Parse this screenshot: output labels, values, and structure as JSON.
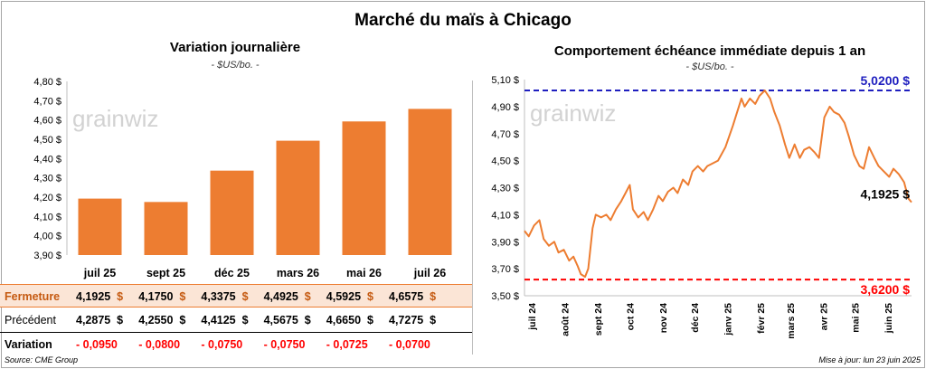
{
  "title": "Marché du maïs à Chicago",
  "left_chart": {
    "title": "Variation journalière",
    "unit": "- $US/bo. -",
    "watermark": "grainwiz"
  },
  "right_chart": {
    "title": "Comportement échéance immédiate depuis 1 an",
    "unit": "- $US/bo. -",
    "watermark": "grainwiz"
  },
  "table": {
    "row_labels": {
      "close": "Fermeture",
      "previous": "Précédent",
      "variation": "Variation"
    },
    "close": [
      "4,1925",
      "4,1750",
      "4,3375",
      "4,4925",
      "4,5925",
      "4,6575"
    ],
    "previous": [
      "4,2875",
      "4,2550",
      "4,4125",
      "4,5675",
      "4,6650",
      "4,7275"
    ],
    "variation": [
      "- 0,0950",
      "- 0,0800",
      "- 0,0750",
      "- 0,0750",
      "- 0,0725",
      "- 0,0700"
    ],
    "currency": "$"
  },
  "footer": {
    "source": "Source: CME Group",
    "update": "Mise à jour: lun 23 juin 2025"
  },
  "colors": {
    "bar": "#ed7d31",
    "line": "#ed7d31",
    "high_line": "#1f1fbf",
    "low_line": "#ff0000",
    "table_highlight": "#fbe5d6"
  },
  "chart_data": [
    {
      "type": "bar",
      "title": "Variation journalière",
      "ylabel": "- $US/bo. -",
      "categories": [
        "juil 25",
        "sept 25",
        "déc 25",
        "mars 26",
        "mai 26",
        "juil 26"
      ],
      "values": [
        4.1925,
        4.175,
        4.3375,
        4.4925,
        4.5925,
        4.6575
      ],
      "ylim": [
        3.9,
        4.8
      ],
      "yticks": [
        "3,90 $",
        "4,00 $",
        "4,10 $",
        "4,20 $",
        "4,30 $",
        "4,40 $",
        "4,50 $",
        "4,60 $",
        "4,70 $",
        "4,80 $"
      ],
      "grid": false
    },
    {
      "type": "line",
      "title": "Comportement échéance immédiate depuis 1 an",
      "ylabel": "- $US/bo. -",
      "ylim": [
        3.5,
        5.1
      ],
      "yticks": [
        "3,50 $",
        "3,70 $",
        "3,90 $",
        "4,10 $",
        "4,30 $",
        "4,50 $",
        "4,70 $",
        "4,90 $",
        "5,10 $"
      ],
      "xticks": [
        "juil 24",
        "août 24",
        "sept 24",
        "oct 24",
        "nov 24",
        "déc 24",
        "janv 25",
        "févr 25",
        "mars 25",
        "avr 25",
        "mai 25",
        "juin 25"
      ],
      "x": [
        "2024-06-24",
        "2024-06-28",
        "2024-07-03",
        "2024-07-08",
        "2024-07-12",
        "2024-07-17",
        "2024-07-22",
        "2024-07-26",
        "2024-07-31",
        "2024-08-05",
        "2024-08-09",
        "2024-08-13",
        "2024-08-16",
        "2024-08-20",
        "2024-08-23",
        "2024-08-27",
        "2024-08-30",
        "2024-09-04",
        "2024-09-09",
        "2024-09-13",
        "2024-09-18",
        "2024-09-23",
        "2024-09-27",
        "2024-10-01",
        "2024-10-04",
        "2024-10-09",
        "2024-10-14",
        "2024-10-18",
        "2024-10-23",
        "2024-10-28",
        "2024-11-01",
        "2024-11-06",
        "2024-11-11",
        "2024-11-15",
        "2024-11-20",
        "2024-11-25",
        "2024-11-29",
        "2024-12-04",
        "2024-12-09",
        "2024-12-13",
        "2024-12-18",
        "2024-12-23",
        "2024-12-30",
        "2025-01-06",
        "2025-01-10",
        "2025-01-14",
        "2025-01-17",
        "2025-01-22",
        "2025-01-27",
        "2025-01-31",
        "2025-02-05",
        "2025-02-10",
        "2025-02-14",
        "2025-02-19",
        "2025-02-24",
        "2025-02-28",
        "2025-03-05",
        "2025-03-10",
        "2025-03-14",
        "2025-03-19",
        "2025-03-24",
        "2025-03-28",
        "2025-04-02",
        "2025-04-07",
        "2025-04-11",
        "2025-04-16",
        "2025-04-21",
        "2025-04-25",
        "2025-04-30",
        "2025-05-05",
        "2025-05-09",
        "2025-05-14",
        "2025-05-19",
        "2025-05-23",
        "2025-05-28",
        "2025-06-02",
        "2025-06-06",
        "2025-06-11",
        "2025-06-16",
        "2025-06-20",
        "2025-06-23"
      ],
      "series": [
        {
          "values": [
            3.98,
            3.94,
            4.02,
            4.06,
            3.92,
            3.87,
            3.9,
            3.82,
            3.84,
            3.76,
            3.79,
            3.72,
            3.66,
            3.64,
            3.7,
            4.0,
            4.1,
            4.08,
            4.1,
            4.06,
            4.14,
            4.2,
            4.26,
            4.32,
            4.14,
            4.08,
            4.12,
            4.06,
            4.14,
            4.24,
            4.2,
            4.27,
            4.3,
            4.26,
            4.36,
            4.32,
            4.42,
            4.46,
            4.42,
            4.46,
            4.48,
            4.5,
            4.6,
            4.76,
            4.86,
            4.96,
            4.9,
            4.96,
            4.92,
            4.98,
            5.02,
            4.96,
            4.86,
            4.76,
            4.62,
            4.52,
            4.62,
            4.52,
            4.58,
            4.6,
            4.56,
            4.52,
            4.82,
            4.9,
            4.86,
            4.84,
            4.78,
            4.68,
            4.54,
            4.46,
            4.44,
            4.6,
            4.52,
            4.46,
            4.42,
            4.38,
            4.44,
            4.4,
            4.34,
            4.22,
            4.1925
          ]
        }
      ],
      "reference_lines": [
        {
          "label": "5,0200 $",
          "value": 5.02
        },
        {
          "label": "3,6200 $",
          "value": 3.62
        }
      ],
      "last_value_label": "4,1925 $",
      "grid": false
    }
  ]
}
